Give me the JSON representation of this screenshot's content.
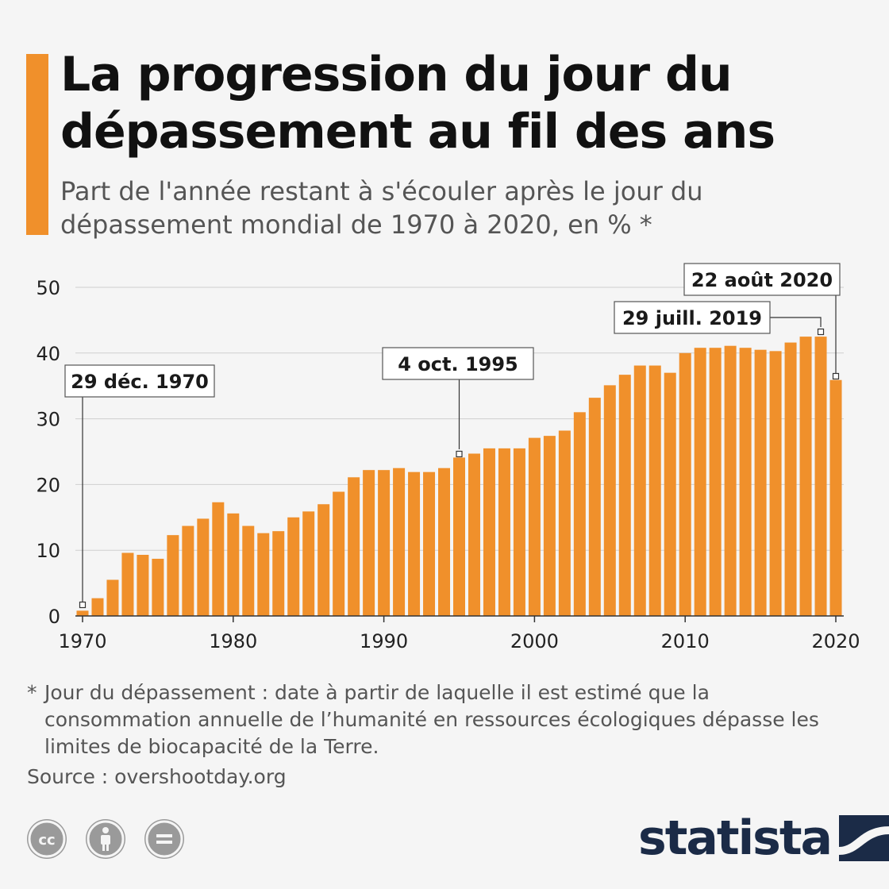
{
  "title": "La progression du jour du dépassement au fil des ans",
  "subtitle": "Part de l'année restant à s'écouler après le jour du dépassement mondial de 1970 à 2020, en % *",
  "footnote_marker": "*",
  "footnote": "Jour du dépassement : date à partir de laquelle il est estimé que la consommation annuelle de l’humanité en ressources écologiques dépasse les limites de biocapacité de la Terre.",
  "source": "Source : overshootday.org",
  "logo_text": "statista",
  "license_icons": [
    "cc-icon",
    "attribution-icon",
    "no-derivatives-icon"
  ],
  "colors": {
    "accent": "#f0902b",
    "bar": "#f0902b",
    "grid": "#cfcfcf",
    "logo": "#1b2b47"
  },
  "chart_data": {
    "type": "bar",
    "x": [
      1970,
      1971,
      1972,
      1973,
      1974,
      1975,
      1976,
      1977,
      1978,
      1979,
      1980,
      1981,
      1982,
      1983,
      1984,
      1985,
      1986,
      1987,
      1988,
      1989,
      1990,
      1991,
      1992,
      1993,
      1994,
      1995,
      1996,
      1997,
      1998,
      1999,
      2000,
      2001,
      2002,
      2003,
      2004,
      2005,
      2006,
      2007,
      2008,
      2009,
      2010,
      2011,
      2012,
      2013,
      2014,
      2015,
      2016,
      2017,
      2018,
      2019,
      2020
    ],
    "values": [
      0.8,
      2.7,
      5.5,
      9.6,
      9.3,
      8.7,
      12.3,
      13.7,
      14.8,
      17.3,
      15.6,
      13.7,
      12.6,
      12.9,
      15.0,
      15.9,
      17.0,
      18.9,
      21.1,
      22.2,
      22.2,
      22.5,
      21.9,
      21.9,
      22.5,
      24.1,
      24.7,
      25.5,
      25.5,
      25.5,
      27.1,
      27.4,
      28.2,
      31.0,
      33.2,
      35.1,
      36.7,
      38.1,
      38.1,
      37.0,
      40.0,
      40.8,
      40.8,
      41.1,
      40.8,
      40.5,
      40.3,
      41.6,
      42.5,
      42.5,
      35.9
    ],
    "ylim": [
      0,
      50
    ],
    "yticks": [
      0,
      10,
      20,
      30,
      40,
      50
    ],
    "xticks": [
      1970,
      1980,
      1990,
      2000,
      2010,
      2020
    ],
    "grid": true,
    "annotations": [
      {
        "year": 1970,
        "label": "29 déc. 1970"
      },
      {
        "year": 1995,
        "label": "4 oct. 1995"
      },
      {
        "year": 2019,
        "label": "29 juill. 2019"
      },
      {
        "year": 2020,
        "label": "22 août 2020"
      }
    ]
  }
}
